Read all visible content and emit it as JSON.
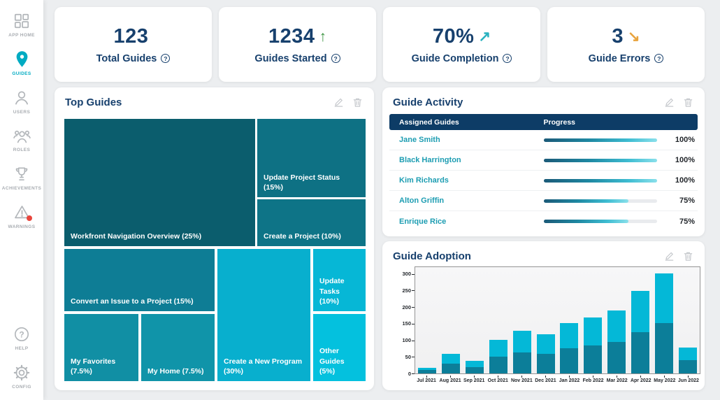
{
  "sidebar": {
    "items": [
      {
        "label": "APP HOME",
        "icon": "app-grid-icon",
        "active": false
      },
      {
        "label": "GUIDES",
        "icon": "map-pin-icon",
        "active": true
      },
      {
        "label": "USERS",
        "icon": "user-icon",
        "active": false
      },
      {
        "label": "ROLES",
        "icon": "group-icon",
        "active": false
      },
      {
        "label": "ACHIEVEMENTS",
        "icon": "trophy-icon",
        "active": false
      },
      {
        "label": "WARNINGS",
        "icon": "warning-icon",
        "active": false,
        "alert_badge": true
      }
    ],
    "footer_items": [
      {
        "label": "HELP",
        "icon": "help-icon"
      },
      {
        "label": "CONFIG",
        "icon": "gear-icon"
      }
    ],
    "active_color": "#00abc2"
  },
  "stats": [
    {
      "value": "123",
      "label": "Total Guides",
      "arrow": "",
      "arrow_color": null
    },
    {
      "value": "1234",
      "label": "Guides Started",
      "arrow": "↑",
      "arrow_color": "#3f9644"
    },
    {
      "value": "70%",
      "label": "Guide Completion",
      "arrow": "↗",
      "arrow_color": "#2ab2c0"
    },
    {
      "value": "3",
      "label": "Guide Errors",
      "arrow": "↘",
      "arrow_color": "#e8a33d"
    }
  ],
  "top_guides": {
    "title": "Top Guides",
    "cells": [
      {
        "label": "Workfront Navigation Overview (25%)",
        "color": "#0b5d6d"
      },
      {
        "label": "Update Project Status (15%)",
        "color": "#0e7184"
      },
      {
        "label": "Create a Project (10%)",
        "color": "#0e7487"
      },
      {
        "label": "Convert an Issue to a Project (15%)",
        "color": "#0e7d95"
      },
      {
        "label": "My Favorites (7.5%)",
        "color": "#118fa4"
      },
      {
        "label": "My Home (7.5%)",
        "color": "#1094a9"
      },
      {
        "label": "Create a New Program (30%)",
        "color": "#08afce"
      },
      {
        "label": "Update Tasks (10%)",
        "color": "#06b7d6"
      },
      {
        "label": "Other Guides (5%)",
        "color": "#04c1de"
      }
    ]
  },
  "guide_activity": {
    "title": "Guide Activity",
    "columns": [
      "Assigned Guides",
      "Progress"
    ],
    "rows": [
      {
        "name": "Jane Smith",
        "progress": 100,
        "progress_label": "100%"
      },
      {
        "name": "Black Harrington",
        "progress": 100,
        "progress_label": "100%"
      },
      {
        "name": "Kim Richards",
        "progress": 100,
        "progress_label": "100%"
      },
      {
        "name": "Alton Griffin",
        "progress": 75,
        "progress_label": "75%"
      },
      {
        "name": "Enrique Rice",
        "progress": 75,
        "progress_label": "75%"
      }
    ]
  },
  "guide_adoption": {
    "title": "Guide Adoption"
  },
  "chart_data": {
    "type": "bar",
    "stacked": true,
    "title": "Guide Adoption",
    "categories": [
      "Jul 2021",
      "Aug 2021",
      "Sep 2021",
      "Oct 2021",
      "Nov 2021",
      "Dec 2021",
      "Jan 2022",
      "Feb 2022",
      "Mar 2022",
      "Apr 2022",
      "May 2022",
      "Jun 2022"
    ],
    "series": [
      {
        "name": "bottom segment",
        "color": "#0c7e99",
        "values": [
          10,
          29,
          19,
          50,
          64,
          59,
          75,
          84,
          95,
          124,
          151,
          39
        ]
      },
      {
        "name": "top segment",
        "color": "#04b8d7",
        "values": [
          7,
          29,
          18,
          51,
          64,
          59,
          77,
          85,
          95,
          124,
          151,
          38
        ]
      }
    ],
    "totals": [
      17,
      58,
      37,
      101,
      128,
      118,
      152,
      169,
      190,
      248,
      302,
      77
    ],
    "xlabel": "",
    "ylabel": "",
    "ylim": [
      0,
      320
    ],
    "yticks": [
      0,
      50,
      100,
      150,
      200,
      250,
      300
    ],
    "grid": false,
    "legend": "none"
  }
}
